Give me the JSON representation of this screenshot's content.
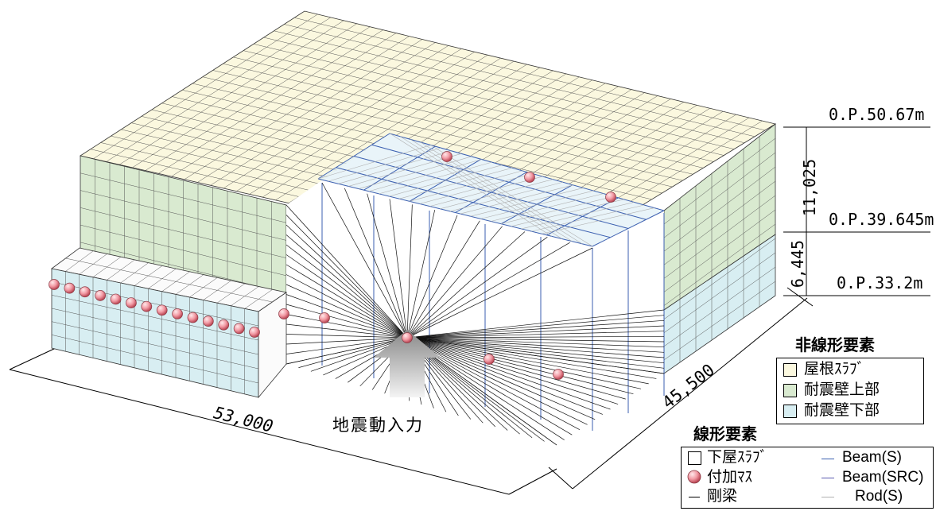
{
  "levels": {
    "top": "0.P.50.67m",
    "middle": "0.P.39.645m",
    "bottom": "0.P.33.2m"
  },
  "dimensions": {
    "upper_height": "11,025",
    "lower_height": "6,445",
    "length": "53,000",
    "width": "45,500"
  },
  "input_label": "地震動入力",
  "legend_nonlinear": {
    "title": "非線形要素",
    "items": [
      {
        "label": "屋根ｽﾗﾌﾞ",
        "color": "#fbf8df"
      },
      {
        "label": "耐震壁上部",
        "color": "#d9ead0"
      },
      {
        "label": "耐震壁下部",
        "color": "#d8eef2"
      }
    ]
  },
  "legend_linear": {
    "title": "線形要素",
    "items": [
      {
        "label": "下屋ｽﾗﾌﾞ",
        "symbol": "square"
      },
      {
        "label": "付加ﾏｽ",
        "symbol": "sphere"
      },
      {
        "label": "剛梁",
        "symbol": "black-line"
      },
      {
        "label": "Beam(S)",
        "symbol": "blue-line"
      },
      {
        "label": "Beam(SRC)",
        "symbol": "navy-line"
      },
      {
        "label": "Rod(S)",
        "symbol": "gray-line"
      }
    ]
  },
  "colors": {
    "roof": "#fbf8df",
    "upper_wall": "#d9ead0",
    "lower_wall": "#d8eef2",
    "beam_s": "#3b5fb0",
    "beam_src": "#5a5ab0",
    "rod_s": "#b0b0b0",
    "mass": "#f0a0a8"
  }
}
